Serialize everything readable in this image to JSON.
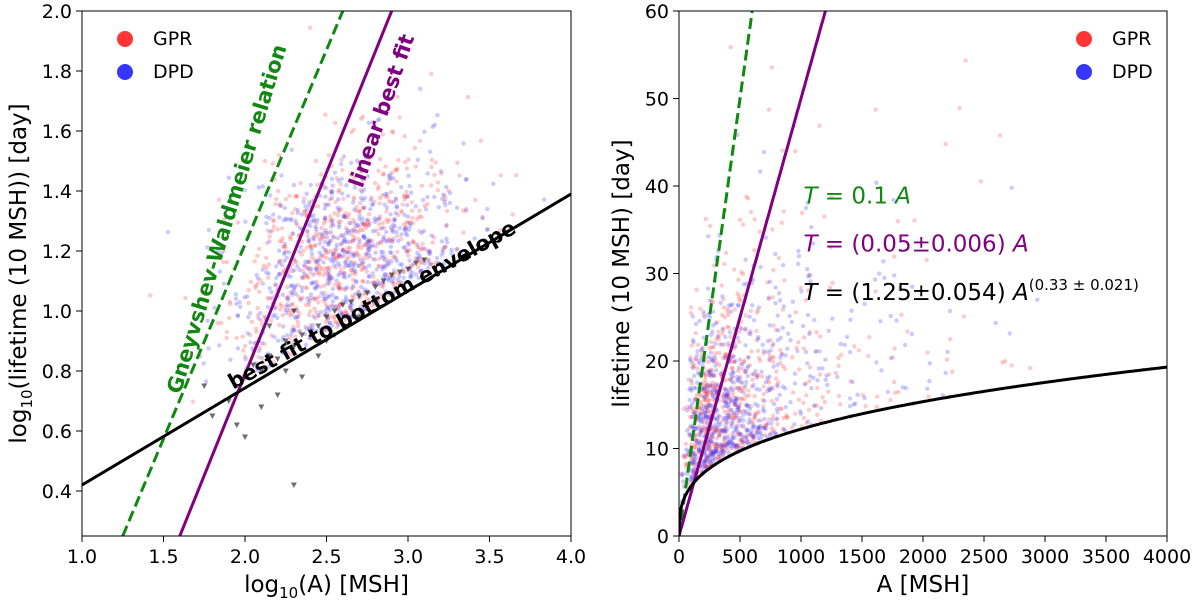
{
  "chart_data": [
    {
      "type": "scatter",
      "xlabel": "log10(A) [MSH]",
      "ylabel": "log10(lifetime (10 MSH)) [day]",
      "xlim": [
        1.0,
        4.0
      ],
      "ylim": [
        0.25,
        2.0
      ],
      "xticks": [
        "1.0",
        "1.5",
        "2.0",
        "2.5",
        "3.0",
        "3.5",
        "4.0"
      ],
      "yticks": [
        "0.4",
        "0.6",
        "0.8",
        "1.0",
        "1.2",
        "1.4",
        "1.6",
        "1.8",
        "2.0"
      ],
      "xtick_values": [
        1.0,
        1.5,
        2.0,
        2.5,
        3.0,
        3.5,
        4.0
      ],
      "ytick_values": [
        0.4,
        0.6,
        0.8,
        1.0,
        1.2,
        1.4,
        1.6,
        1.8,
        2.0
      ],
      "legend": [
        {
          "name": "GPR",
          "color": "#ff2020"
        },
        {
          "name": "DPD",
          "color": "#2020ff"
        }
      ],
      "legend_location": "top-left",
      "scatter_clouds": [
        {
          "name": "GPR",
          "color": "#ff4040",
          "center": [
            2.6,
            1.18
          ],
          "spread": [
            0.35,
            0.17
          ],
          "count": 650
        },
        {
          "name": "DPD",
          "color": "#4040ff",
          "center": [
            2.6,
            1.18
          ],
          "spread": [
            0.35,
            0.17
          ],
          "count": 650
        }
      ],
      "lines": [
        {
          "name": "Gneyvshev-Waldmeier relation",
          "color": "#118811",
          "style": "dashed",
          "points": [
            [
              1.25,
              0.25
            ],
            [
              2.6,
              2.0
            ]
          ]
        },
        {
          "name": "linear best fit",
          "color": "#800080",
          "style": "solid",
          "points": [
            [
              1.6,
              0.25
            ],
            [
              2.9,
              2.0
            ]
          ]
        },
        {
          "name": "best fit to bottom envelope",
          "color": "#000000",
          "style": "solid",
          "points": [
            [
              1.0,
              0.42
            ],
            [
              4.0,
              1.39
            ]
          ]
        }
      ],
      "envelope_marker_color": "#222222",
      "envelope_points": [
        [
          2.3,
          0.42
        ],
        [
          1.75,
          0.75
        ],
        [
          1.8,
          0.65
        ],
        [
          1.9,
          0.7
        ],
        [
          2.0,
          0.78
        ],
        [
          2.05,
          0.82
        ],
        [
          2.1,
          0.8
        ],
        [
          2.15,
          0.85
        ],
        [
          2.2,
          0.84
        ],
        [
          2.25,
          0.9
        ],
        [
          2.3,
          0.88
        ],
        [
          2.35,
          0.92
        ],
        [
          2.4,
          0.93
        ],
        [
          2.45,
          0.95
        ],
        [
          2.5,
          0.98
        ],
        [
          2.55,
          1.0
        ],
        [
          2.6,
          1.02
        ],
        [
          2.65,
          1.03
        ],
        [
          2.7,
          1.05
        ],
        [
          2.75,
          1.06
        ],
        [
          2.8,
          1.08
        ],
        [
          2.85,
          1.1
        ],
        [
          2.9,
          1.12
        ],
        [
          2.95,
          1.13
        ],
        [
          3.0,
          1.14
        ],
        [
          3.05,
          1.16
        ],
        [
          3.1,
          1.17
        ],
        [
          2.2,
          0.72
        ],
        [
          2.35,
          0.78
        ],
        [
          2.5,
          0.9
        ],
        [
          2.6,
          0.95
        ],
        [
          2.15,
          0.95
        ],
        [
          2.3,
          1.0
        ],
        [
          1.95,
          0.62
        ],
        [
          2.1,
          0.68
        ],
        [
          2.45,
          0.85
        ],
        [
          2.7,
          0.98
        ],
        [
          2.0,
          0.58
        ],
        [
          2.25,
          0.8
        ],
        [
          2.55,
          0.92
        ]
      ],
      "annotations": [
        {
          "text": "Gneyvshev-Waldmeier relation",
          "color": "#118811",
          "at": [
            1.93,
            1.3
          ],
          "angle_deg": -73
        },
        {
          "text": "linear best fit",
          "color": "#800080",
          "at": [
            2.88,
            1.66
          ],
          "angle_deg": -71
        },
        {
          "text": "best fit to bottom envelope",
          "color": "#000000",
          "at": [
            2.8,
            1.0
          ],
          "angle_deg": -29
        }
      ]
    },
    {
      "type": "scatter",
      "xlabel": "A [MSH]",
      "ylabel": "lifetime (10 MSH) [day]",
      "xlim": [
        0,
        4000
      ],
      "ylim": [
        0,
        60
      ],
      "xticks": [
        "0",
        "500",
        "1000",
        "1500",
        "2000",
        "2500",
        "3000",
        "3500",
        "4000"
      ],
      "yticks": [
        "0",
        "10",
        "20",
        "30",
        "40",
        "50",
        "60"
      ],
      "xtick_values": [
        0,
        500,
        1000,
        1500,
        2000,
        2500,
        3000,
        3500,
        4000
      ],
      "ytick_values": [
        0,
        10,
        20,
        30,
        40,
        50,
        60
      ],
      "legend": [
        {
          "name": "GPR",
          "color": "#ff2020"
        },
        {
          "name": "DPD",
          "color": "#2020ff"
        }
      ],
      "legend_location": "top-right",
      "scatter_clouds": [
        {
          "name": "GPR",
          "color": "#ff4040",
          "count": 650
        },
        {
          "name": "DPD",
          "color": "#4040ff",
          "count": 650
        }
      ],
      "lines": [
        {
          "name": "T = 0.1 A",
          "color": "#118811",
          "style": "dashed",
          "model": "linear",
          "a": 0.1
        },
        {
          "name": "T = (0.05±0.006) A",
          "color": "#800080",
          "style": "solid",
          "model": "linear",
          "a": 0.05
        },
        {
          "name": "T = (1.25±0.054) A^(0.33±0.021)",
          "color": "#000000",
          "style": "solid",
          "model": "power",
          "a": 1.25,
          "b": 0.33
        }
      ],
      "equations": [
        {
          "prefix": "T",
          "main": " = 0.1 ",
          "suffix": "A",
          "sup": "",
          "color": "#118811",
          "at": [
            1020,
            38
          ]
        },
        {
          "prefix": "T",
          "main": " = (0.05±0.006) ",
          "suffix": "A",
          "sup": "",
          "color": "#800080",
          "at": [
            1020,
            32.5
          ]
        },
        {
          "prefix": "T",
          "main": " = (1.25±0.054) ",
          "suffix": "A",
          "sup": "(0.33 ± 0.021)",
          "color": "#000000",
          "at": [
            1020,
            27
          ]
        }
      ]
    }
  ]
}
